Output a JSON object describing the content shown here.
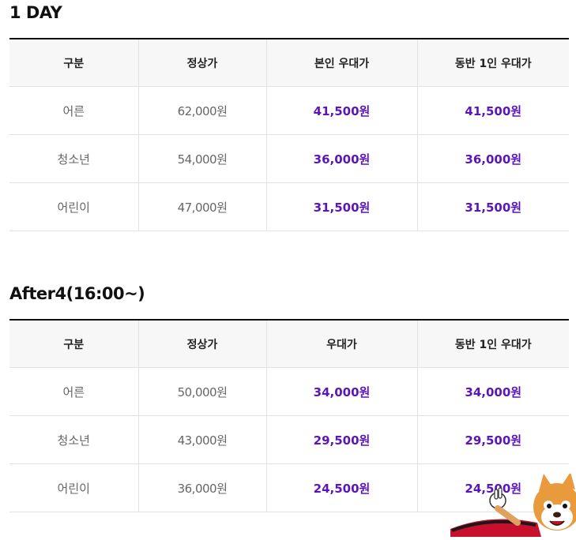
{
  "sections": [
    {
      "title": "1 DAY",
      "headers": [
        "구분",
        "정상가",
        "본인 우대가",
        "동반 1인 우대가"
      ],
      "rows": [
        {
          "category": "어른",
          "regular": "62,000원",
          "discount": "41,500원",
          "companion": "41,500원"
        },
        {
          "category": "청소년",
          "regular": "54,000원",
          "discount": "36,000원",
          "companion": "36,000원"
        },
        {
          "category": "어린이",
          "regular": "47,000원",
          "discount": "31,500원",
          "companion": "31,500원"
        }
      ]
    },
    {
      "title": "After4(16:00~)",
      "headers": [
        "구분",
        "정상가",
        "우대가",
        "동반 1인 우대가"
      ],
      "rows": [
        {
          "category": "어른",
          "regular": "50,000원",
          "discount": "34,000원",
          "companion": "34,000원"
        },
        {
          "category": "청소년",
          "regular": "43,000원",
          "discount": "29,500원",
          "companion": "29,500원"
        },
        {
          "category": "어린이",
          "regular": "36,000원",
          "discount": "24,500원",
          "companion": "24,500원"
        }
      ]
    }
  ],
  "colors": {
    "discount": "#5b15b8",
    "header_bg": "#f7f7f7",
    "border": "#e2e2e2"
  },
  "mascot": {
    "icon": "squirrel-mascot-icon"
  }
}
